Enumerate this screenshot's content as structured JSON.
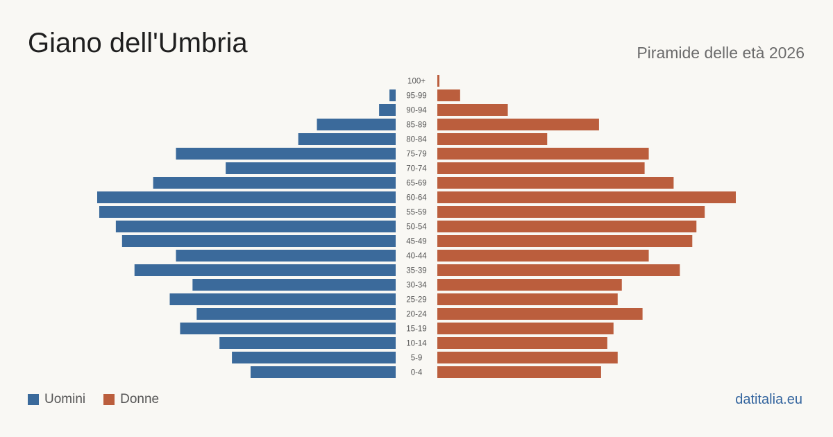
{
  "header": {
    "title": "Giano dell'Umbria",
    "subtitle": "Piramide delle età 2026"
  },
  "legend": {
    "men_label": "Uomini",
    "women_label": "Donne"
  },
  "footer": {
    "source": "datitalia.eu"
  },
  "colors": {
    "men": "#3b6a9b",
    "women": "#bb5e3d",
    "background": "#f9f8f4"
  },
  "chart_data": {
    "type": "bar",
    "orientation": "horizontal-pyramid",
    "categories": [
      "100+",
      "95-99",
      "90-94",
      "85-89",
      "80-84",
      "75-79",
      "70-74",
      "65-69",
      "60-64",
      "55-59",
      "50-54",
      "45-49",
      "40-44",
      "35-39",
      "30-34",
      "25-29",
      "20-24",
      "15-19",
      "10-14",
      "5-9",
      "0-4"
    ],
    "series": [
      {
        "name": "Uomini",
        "values": [
          0,
          3,
          8,
          38,
          47,
          106,
          82,
          117,
          144,
          143,
          135,
          132,
          106,
          126,
          98,
          109,
          96,
          104,
          85,
          79,
          70
        ]
      },
      {
        "name": "Donne",
        "values": [
          1,
          11,
          34,
          78,
          53,
          102,
          100,
          114,
          144,
          129,
          125,
          123,
          102,
          117,
          89,
          87,
          99,
          85,
          82,
          87,
          79
        ]
      }
    ],
    "legend_position": "bottom-left",
    "grid": false
  }
}
